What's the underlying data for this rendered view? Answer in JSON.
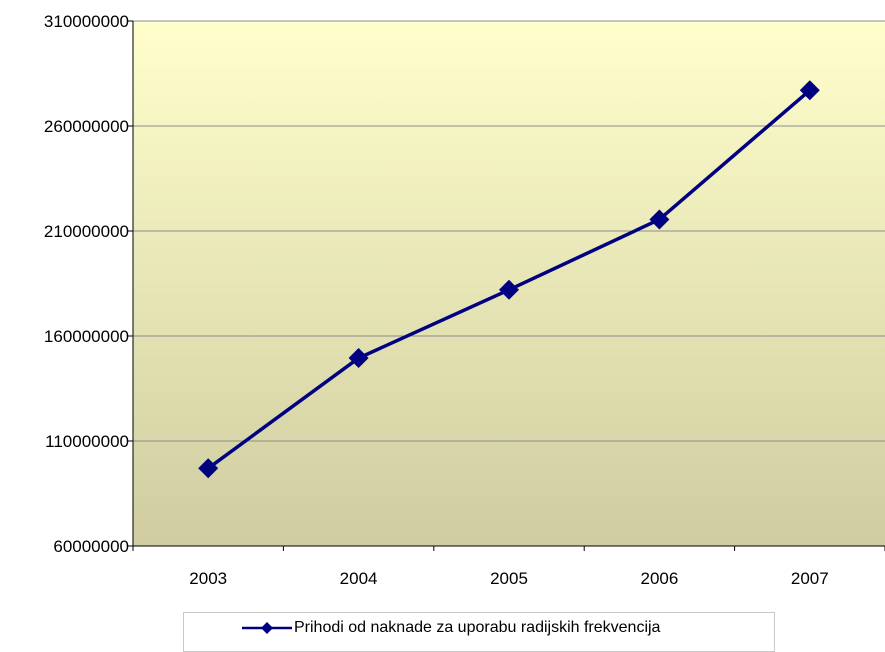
{
  "chart_data": {
    "type": "line",
    "title": "",
    "xlabel": "",
    "ylabel": "",
    "categories": [
      "2003",
      "2004",
      "2005",
      "2006",
      "2007"
    ],
    "series": [
      {
        "name": "Prihodi od naknade za uporabu radijskih frekvencija",
        "values": [
          97000000,
          149500000,
          182000000,
          215500000,
          277000000
        ],
        "color": "#000080",
        "marker": "diamond"
      }
    ],
    "ylim": [
      60000000,
      310000000
    ],
    "ytick_labels": [
      "60000000",
      "110000000",
      "160000000",
      "210000000",
      "260000000",
      "310000000"
    ],
    "grid": true,
    "legend_position": "bottom",
    "plot_background": "gradient from #fffecc (top) to #cfcda0 (bottom)"
  }
}
